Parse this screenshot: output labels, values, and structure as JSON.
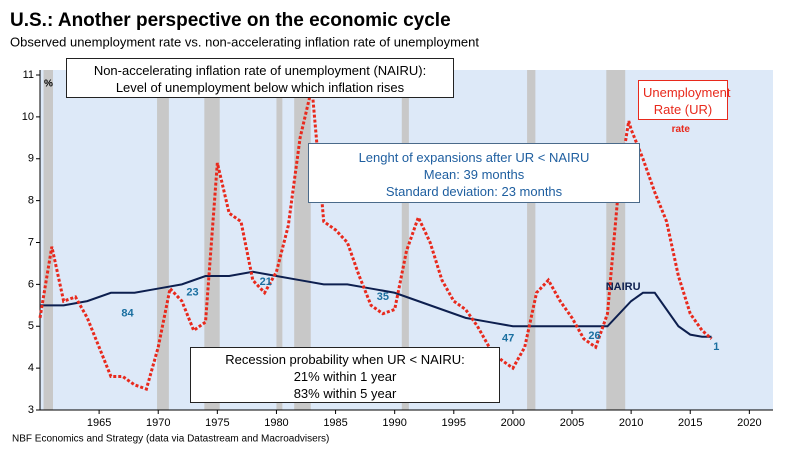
{
  "chart_data": {
    "type": "line",
    "title": "U.S.: Another perspective on the economic cycle",
    "subtitle": "Observed unemployment rate vs. non-accelerating inflation rate of unemployment",
    "y_unit": "%",
    "source": "NBF Economics and Strategy (data via Datastream and Macroadvisers)",
    "xlim": [
      1960,
      2022
    ],
    "xticks": [
      1965,
      1970,
      1975,
      1980,
      1985,
      1990,
      1995,
      2000,
      2005,
      2010,
      2015,
      2020
    ],
    "ylim": [
      3,
      11
    ],
    "yticks": [
      3,
      4,
      5,
      6,
      7,
      8,
      9,
      10,
      11
    ],
    "recession_color": "#c8c8c8",
    "recessions": [
      [
        1960.3,
        1961.1
      ],
      [
        1969.9,
        1970.9
      ],
      [
        1973.9,
        1975.2
      ],
      [
        1980.0,
        1980.5
      ],
      [
        1981.5,
        1982.9
      ],
      [
        1990.6,
        1991.2
      ],
      [
        2001.2,
        2001.9
      ],
      [
        2007.9,
        2009.5
      ]
    ],
    "series": [
      {
        "name": "Unemployment Rate (UR)",
        "color": "#e8291c",
        "style": "dotted",
        "x": [
          1960,
          1961,
          1962,
          1963,
          1964,
          1965,
          1966,
          1967,
          1968,
          1969,
          1970,
          1971,
          1972,
          1973,
          1974,
          1975,
          1976,
          1977,
          1978,
          1979,
          1980,
          1981,
          1982,
          1983,
          1984,
          1985,
          1986,
          1987,
          1988,
          1989,
          1990,
          1991,
          1992,
          1993,
          1994,
          1995,
          1996,
          1997,
          1998,
          1999,
          2000,
          2001,
          2002,
          2003,
          2004,
          2005,
          2006,
          2007,
          2008,
          2009,
          2009.8,
          2010,
          2011,
          2012,
          2013,
          2014,
          2015,
          2016,
          2016.8
        ],
        "values": [
          5.2,
          6.9,
          5.6,
          5.7,
          5.2,
          4.5,
          3.8,
          3.8,
          3.6,
          3.5,
          4.5,
          5.9,
          5.6,
          4.9,
          5.1,
          8.9,
          7.7,
          7.5,
          6.1,
          5.8,
          6.3,
          7.4,
          9.5,
          10.7,
          7.5,
          7.3,
          7.0,
          6.2,
          5.5,
          5.3,
          5.4,
          6.8,
          7.6,
          7.0,
          6.1,
          5.6,
          5.4,
          5.0,
          4.5,
          4.2,
          4.0,
          4.5,
          5.8,
          6.1,
          5.6,
          5.2,
          4.7,
          4.5,
          5.3,
          8.5,
          9.9,
          9.7,
          9.0,
          8.2,
          7.5,
          6.2,
          5.3,
          4.9,
          4.7
        ]
      },
      {
        "name": "NAIRU",
        "color": "#0d1f4f",
        "style": "solid",
        "x": [
          1960,
          1962,
          1964,
          1966,
          1968,
          1970,
          1972,
          1974,
          1976,
          1978,
          1980,
          1982,
          1984,
          1986,
          1988,
          1990,
          1992,
          1994,
          1996,
          1998,
          2000,
          2002,
          2004,
          2006,
          2008,
          2010,
          2011,
          2012,
          2013,
          2014,
          2015,
          2016,
          2016.8
        ],
        "values": [
          5.5,
          5.5,
          5.6,
          5.8,
          5.8,
          5.9,
          6.0,
          6.2,
          6.2,
          6.3,
          6.2,
          6.1,
          6.0,
          6.0,
          5.9,
          5.8,
          5.6,
          5.4,
          5.2,
          5.1,
          5.0,
          5.0,
          5.0,
          5.0,
          5.0,
          5.6,
          5.8,
          5.8,
          5.4,
          5.0,
          4.8,
          4.75,
          4.75
        ]
      }
    ],
    "annotations": [
      {
        "text": "84",
        "x": 1967.4,
        "y": 5.3
      },
      {
        "text": "23",
        "x": 1972.9,
        "y": 5.8
      },
      {
        "text": "21",
        "x": 1979.1,
        "y": 6.05
      },
      {
        "text": "35",
        "x": 1989.0,
        "y": 5.7
      },
      {
        "text": "47",
        "x": 1999.6,
        "y": 4.7
      },
      {
        "text": "26",
        "x": 2006.9,
        "y": 4.77
      },
      {
        "text": "1",
        "x": 2017.2,
        "y": 4.5
      }
    ],
    "extra_label": {
      "text": "rate",
      "x": 2014.2,
      "y": 9.7
    },
    "boxes": {
      "nairu": [
        "Non-accelerating inflation rate of unemployment (NAIRU):",
        "Level of unemployment below which inflation rises"
      ],
      "expansions": [
        "Lenght of expansions after UR < NAIRU",
        "Mean: 39 months",
        "Standard deviation: 23 months"
      ],
      "recession": [
        "Recession probability when UR < NAIRU:",
        "21% within 1 year",
        "83% within 5 year"
      ]
    }
  }
}
